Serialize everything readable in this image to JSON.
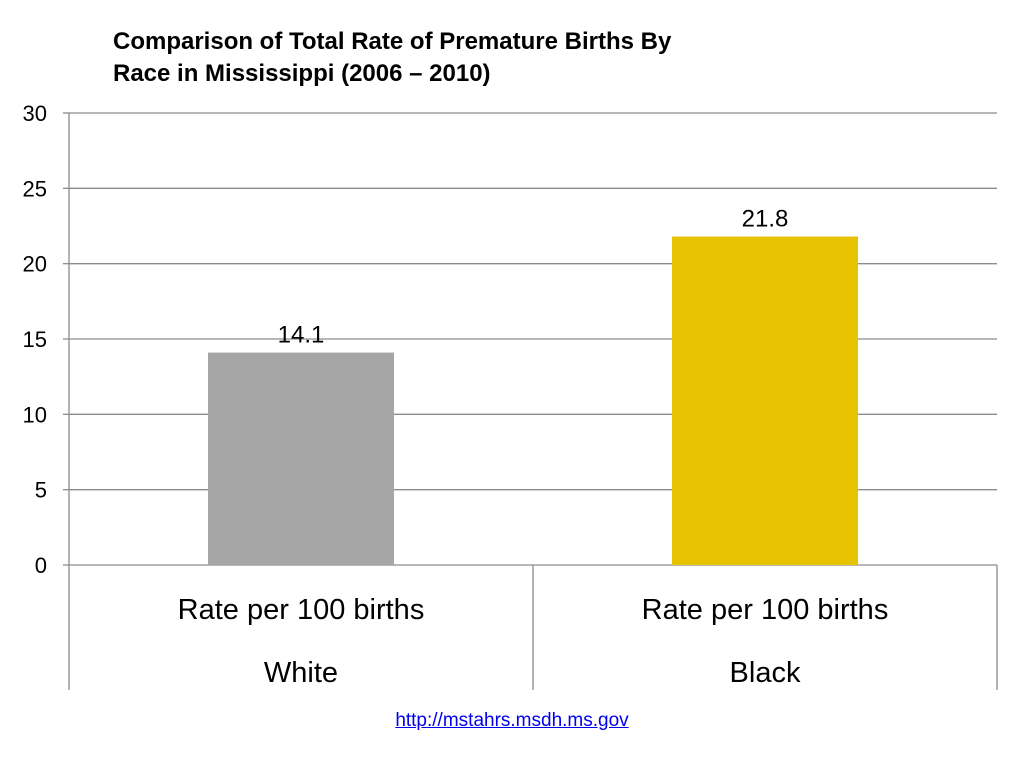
{
  "chart_data": {
    "type": "bar",
    "title_line1": "Comparison of Total Rate of Premature Births By",
    "title_line2": "Race in Mississippi (2006 – 2010)",
    "ylim": [
      0,
      30
    ],
    "yticks": [
      0,
      5,
      10,
      15,
      20,
      25,
      30
    ],
    "grid": true,
    "legend": "none",
    "categories": [
      {
        "measure": "Rate per 100 births",
        "group": "White"
      },
      {
        "measure": "Rate per 100 births",
        "group": "Black"
      }
    ],
    "values": [
      14.1,
      21.8
    ],
    "value_labels": [
      "14.1",
      "21.8"
    ],
    "colors": [
      "#a6a6a6",
      "#e6c200"
    ]
  },
  "source_link": "http://mstahrs.msdh.ms.gov"
}
